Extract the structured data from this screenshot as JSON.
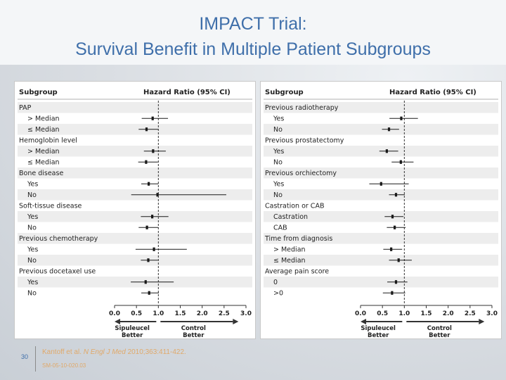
{
  "slide": {
    "title_line1": "IMPACT Trial:",
    "title_line2": "Survival Benefit in Multiple Patient Subgroups",
    "page_number": "30",
    "citation_authors": "Kantoff et al.",
    "citation_journal": "N Engl J Med",
    "citation_details": "2010;363:411-422.",
    "code": "SM-05-10-020.03"
  },
  "colors": {
    "title": "#3f6faa",
    "citation": "#e0a96a",
    "stripe": "#ededed",
    "mark": "#1a1a1a"
  },
  "chart_data": [
    {
      "type": "forest",
      "header_subgroup": "Subgroup",
      "header_ratio": "Hazard Ratio (95% CI)",
      "xlim": [
        0.0,
        3.0
      ],
      "ticks": [
        "0.0",
        "0.5",
        "1.0",
        "1.5",
        "2.0",
        "2.5",
        "3.0"
      ],
      "reference_line": 1.0,
      "favor_left": [
        "Sipuleucel",
        "Better"
      ],
      "favor_right": [
        "Control",
        "Better"
      ],
      "rows": [
        {
          "label": "PAP",
          "indent": false,
          "hr": null,
          "lo": null,
          "hi": null
        },
        {
          "label": "> Median",
          "indent": true,
          "hr": 0.87,
          "lo": 0.62,
          "hi": 1.22
        },
        {
          "label": "≤ Median",
          "indent": true,
          "hr": 0.73,
          "lo": 0.55,
          "hi": 1.0
        },
        {
          "label": "Hemoglobin level",
          "indent": false,
          "hr": null,
          "lo": null,
          "hi": null
        },
        {
          "label": "> Median",
          "indent": true,
          "hr": 0.88,
          "lo": 0.67,
          "hi": 1.17
        },
        {
          "label": "≤ Median",
          "indent": true,
          "hr": 0.72,
          "lo": 0.54,
          "hi": 0.99
        },
        {
          "label": "Bone disease",
          "indent": false,
          "hr": null,
          "lo": null,
          "hi": null
        },
        {
          "label": "Yes",
          "indent": true,
          "hr": 0.78,
          "lo": 0.61,
          "hi": 1.0
        },
        {
          "label": "No",
          "indent": true,
          "hr": 0.98,
          "lo": 0.38,
          "hi": 2.55
        },
        {
          "label": "Soft-tissue disease",
          "indent": false,
          "hr": null,
          "lo": null,
          "hi": null
        },
        {
          "label": "Yes",
          "indent": true,
          "hr": 0.86,
          "lo": 0.6,
          "hi": 1.23
        },
        {
          "label": "No",
          "indent": true,
          "hr": 0.74,
          "lo": 0.55,
          "hi": 1.0
        },
        {
          "label": "Previous chemotherapy",
          "indent": false,
          "hr": null,
          "lo": null,
          "hi": null
        },
        {
          "label": "Yes",
          "indent": true,
          "hr": 0.9,
          "lo": 0.48,
          "hi": 1.65
        },
        {
          "label": "No",
          "indent": true,
          "hr": 0.77,
          "lo": 0.6,
          "hi": 0.99
        },
        {
          "label": "Previous docetaxel use",
          "indent": false,
          "hr": null,
          "lo": null,
          "hi": null
        },
        {
          "label": "Yes",
          "indent": true,
          "hr": 0.71,
          "lo": 0.37,
          "hi": 1.35
        },
        {
          "label": "No",
          "indent": true,
          "hr": 0.79,
          "lo": 0.61,
          "hi": 1.01
        }
      ]
    },
    {
      "type": "forest",
      "header_subgroup": "Subgroup",
      "header_ratio": "Hazard Ratio (95% CI)",
      "xlim": [
        0.0,
        3.0
      ],
      "ticks": [
        "0.0",
        "0.5",
        "1.0",
        "1.5",
        "2.0",
        "2.5",
        "3.0"
      ],
      "reference_line": 1.0,
      "favor_left": [
        "Sipuleucel",
        "Better"
      ],
      "favor_right": [
        "Control",
        "Better"
      ],
      "rows": [
        {
          "label": "Previous radiotherapy",
          "indent": false,
          "hr": null,
          "lo": null,
          "hi": null
        },
        {
          "label": "Yes",
          "indent": true,
          "hr": 0.93,
          "lo": 0.66,
          "hi": 1.31
        },
        {
          "label": "No",
          "indent": true,
          "hr": 0.65,
          "lo": 0.49,
          "hi": 0.88
        },
        {
          "label": "Previous prostatectomy",
          "indent": false,
          "hr": null,
          "lo": null,
          "hi": null
        },
        {
          "label": "Yes",
          "indent": true,
          "hr": 0.6,
          "lo": 0.43,
          "hi": 0.86
        },
        {
          "label": "No",
          "indent": true,
          "hr": 0.92,
          "lo": 0.71,
          "hi": 1.21
        },
        {
          "label": "Previous orchiectomy",
          "indent": false,
          "hr": null,
          "lo": null,
          "hi": null
        },
        {
          "label": "Yes",
          "indent": true,
          "hr": 0.47,
          "lo": 0.2,
          "hi": 1.1
        },
        {
          "label": "No",
          "indent": true,
          "hr": 0.81,
          "lo": 0.65,
          "hi": 1.01
        },
        {
          "label": "Castration or CAB",
          "indent": false,
          "hr": null,
          "lo": null,
          "hi": null
        },
        {
          "label": "Castration",
          "indent": true,
          "hr": 0.73,
          "lo": 0.55,
          "hi": 0.98
        },
        {
          "label": "CAB",
          "indent": true,
          "hr": 0.78,
          "lo": 0.6,
          "hi": 1.03
        },
        {
          "label": "Time from diagnosis",
          "indent": false,
          "hr": null,
          "lo": null,
          "hi": null
        },
        {
          "label": "> Median",
          "indent": true,
          "hr": 0.7,
          "lo": 0.52,
          "hi": 0.95
        },
        {
          "label": "≤ Median",
          "indent": true,
          "hr": 0.87,
          "lo": 0.65,
          "hi": 1.17
        },
        {
          "label": "Average pain score",
          "indent": false,
          "hr": null,
          "lo": null,
          "hi": null
        },
        {
          "label": "0",
          "indent": true,
          "hr": 0.81,
          "lo": 0.61,
          "hi": 1.07
        },
        {
          "label": ">0",
          "indent": true,
          "hr": 0.72,
          "lo": 0.51,
          "hi": 1.02
        }
      ]
    }
  ]
}
